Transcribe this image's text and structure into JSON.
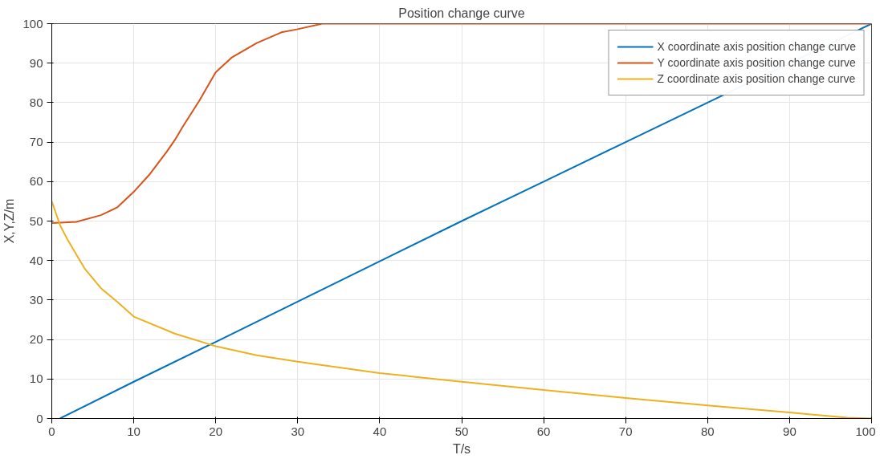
{
  "chart_data": {
    "type": "line",
    "title": "Position change curve",
    "xlabel": "T/s",
    "ylabel": "X,Y,Z/m",
    "xlim": [
      0,
      100
    ],
    "ylim": [
      0,
      100
    ],
    "xticks": [
      0,
      10,
      20,
      30,
      40,
      50,
      60,
      70,
      80,
      90,
      100
    ],
    "yticks": [
      0,
      10,
      20,
      30,
      40,
      50,
      60,
      70,
      80,
      90,
      100
    ],
    "grid": true,
    "legend": "top right",
    "line_style": "solid",
    "marker": "none",
    "series": [
      {
        "name": "X coordinate axis position change curve",
        "color": "#0072bd",
        "x": [
          1,
          10,
          20,
          30,
          40,
          50,
          60,
          70,
          80,
          100
        ],
        "values": [
          0,
          9.3,
          19.4,
          29.6,
          39.8,
          50,
          60,
          70,
          80,
          100
        ]
      },
      {
        "name": "Y coordinate axis position change curve",
        "color": "#d95319",
        "x": [
          0,
          3,
          6,
          8,
          10,
          12,
          14,
          15,
          16,
          18,
          20,
          22,
          25,
          28,
          30,
          33,
          100
        ],
        "values": [
          49.5,
          49.8,
          51.5,
          53.5,
          57.4,
          62,
          67.5,
          70.5,
          74,
          80.5,
          87.7,
          91.5,
          95.1,
          97.8,
          98.6,
          100,
          100
        ]
      },
      {
        "name": "Z coordinate axis position change curve",
        "color": "#edb120",
        "x": [
          0,
          1,
          2,
          4,
          6,
          8,
          10,
          15,
          20,
          25,
          30,
          40,
          50,
          60,
          70,
          80,
          90,
          97,
          100
        ],
        "values": [
          55,
          49,
          45,
          38,
          33,
          29.5,
          25.8,
          21.5,
          18.3,
          16,
          14.4,
          11.5,
          9.3,
          7.2,
          5.2,
          3.3,
          1.5,
          0.2,
          0
        ]
      }
    ]
  }
}
